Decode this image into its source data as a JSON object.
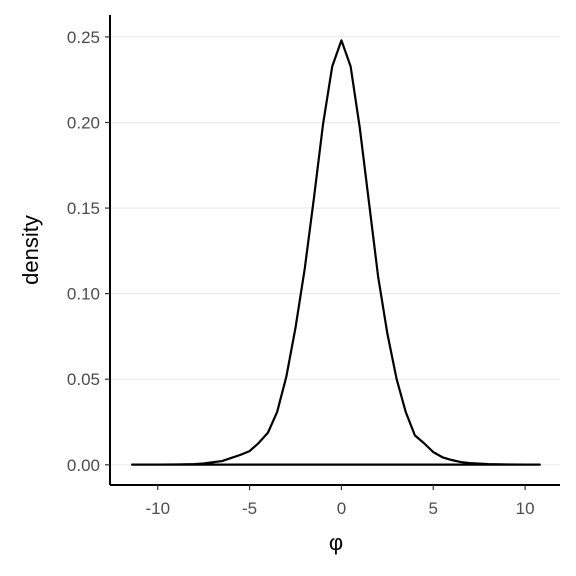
{
  "chart_data": {
    "type": "line",
    "title": "",
    "xlabel": "φ",
    "ylabel": "density",
    "xlim": [
      -12.6,
      11.9
    ],
    "ylim": [
      -0.0118,
      0.2628
    ],
    "x_ticks": [
      -10,
      -5,
      0,
      5,
      10
    ],
    "x_tick_labels": [
      "-10",
      "-5",
      "0",
      "5",
      "10"
    ],
    "y_ticks": [
      0,
      0.05,
      0.1,
      0.15,
      0.2,
      0.25
    ],
    "y_tick_labels": [
      "0.00",
      "0.05",
      "0.10",
      "0.15",
      "0.20",
      "0.25"
    ],
    "grid": "horizontal major",
    "series": [
      {
        "x": [
          -11.4,
          -10,
          -9,
          -8,
          -7.5,
          -7,
          -6.5,
          -6,
          -5.5,
          -5,
          -4.5,
          -4,
          -3.5,
          -3,
          -2.5,
          -2,
          -1.5,
          -1,
          -0.5,
          0,
          0.5,
          1,
          1.5,
          2,
          2.5,
          3,
          3.5,
          4,
          4.5,
          5,
          5.5,
          6,
          6.5,
          7,
          8,
          9,
          10,
          10.8
        ],
        "values": [
          0.0001,
          0.0001,
          0.0002,
          0.0004,
          0.0008,
          0.0015,
          0.0022,
          0.004,
          0.0058,
          0.008,
          0.0128,
          0.0188,
          0.0309,
          0.0515,
          0.0801,
          0.1144,
          0.1556,
          0.1991,
          0.2328,
          0.248,
          0.2328,
          0.1968,
          0.1533,
          0.1098,
          0.0767,
          0.0503,
          0.0309,
          0.0172,
          0.0126,
          0.0074,
          0.0044,
          0.0028,
          0.0016,
          0.001,
          0.0004,
          0.0002,
          0.0001,
          0.0001
        ]
      }
    ]
  }
}
